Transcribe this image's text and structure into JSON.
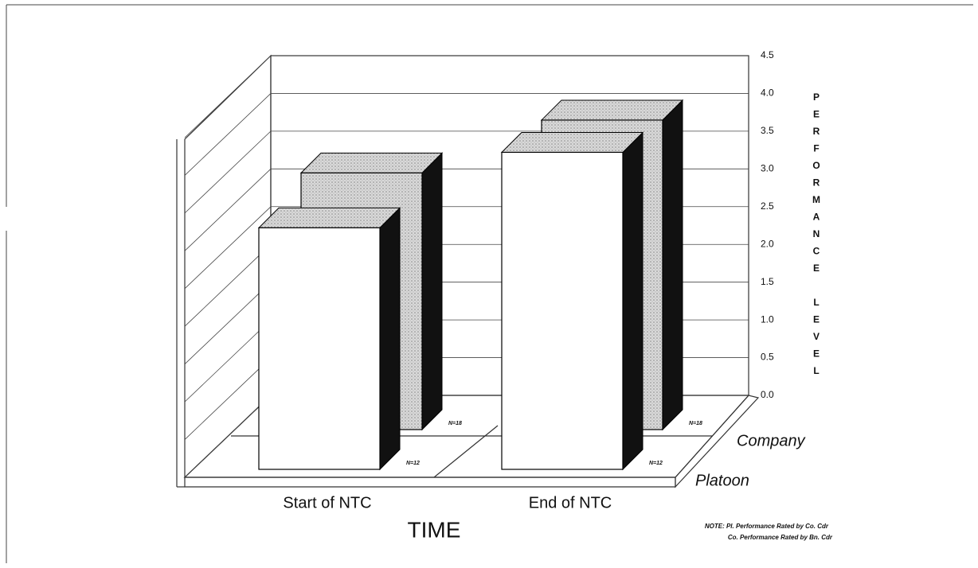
{
  "chart_data": {
    "type": "bar3d",
    "x_label": "TIME",
    "y_label": "PERFORMANCE LEVEL",
    "categories": [
      "Start of NTC",
      "End of NTC"
    ],
    "series": [
      {
        "name": "Company",
        "color": "#d9d9d9",
        "n_label": "N=18",
        "values": [
          3.4,
          4.1
        ]
      },
      {
        "name": "Platoon",
        "color": "#ffffff",
        "n_label": "N=12",
        "values": [
          3.2,
          4.2
        ]
      }
    ],
    "ylim": [
      0,
      4.5
    ],
    "yticks": [
      {
        "value": 0,
        "label": "0.0"
      },
      {
        "value": 0.5,
        "label": "0.5"
      },
      {
        "value": 1,
        "label": "1.0"
      },
      {
        "value": 1.5,
        "label": "1.5"
      },
      {
        "value": 2,
        "label": "2.0"
      },
      {
        "value": 2.5,
        "label": "2.5"
      },
      {
        "value": 3,
        "label": "3.0"
      },
      {
        "value": 3.5,
        "label": "3.5"
      },
      {
        "value": 4,
        "label": "4.0"
      },
      {
        "value": 4.5,
        "label": "4.5"
      }
    ],
    "grid": true,
    "notes": [
      "NOTE: Pl. Performance Rated by Co. Cdr",
      "Co. Performance Rated by Bn. Cdr"
    ]
  }
}
